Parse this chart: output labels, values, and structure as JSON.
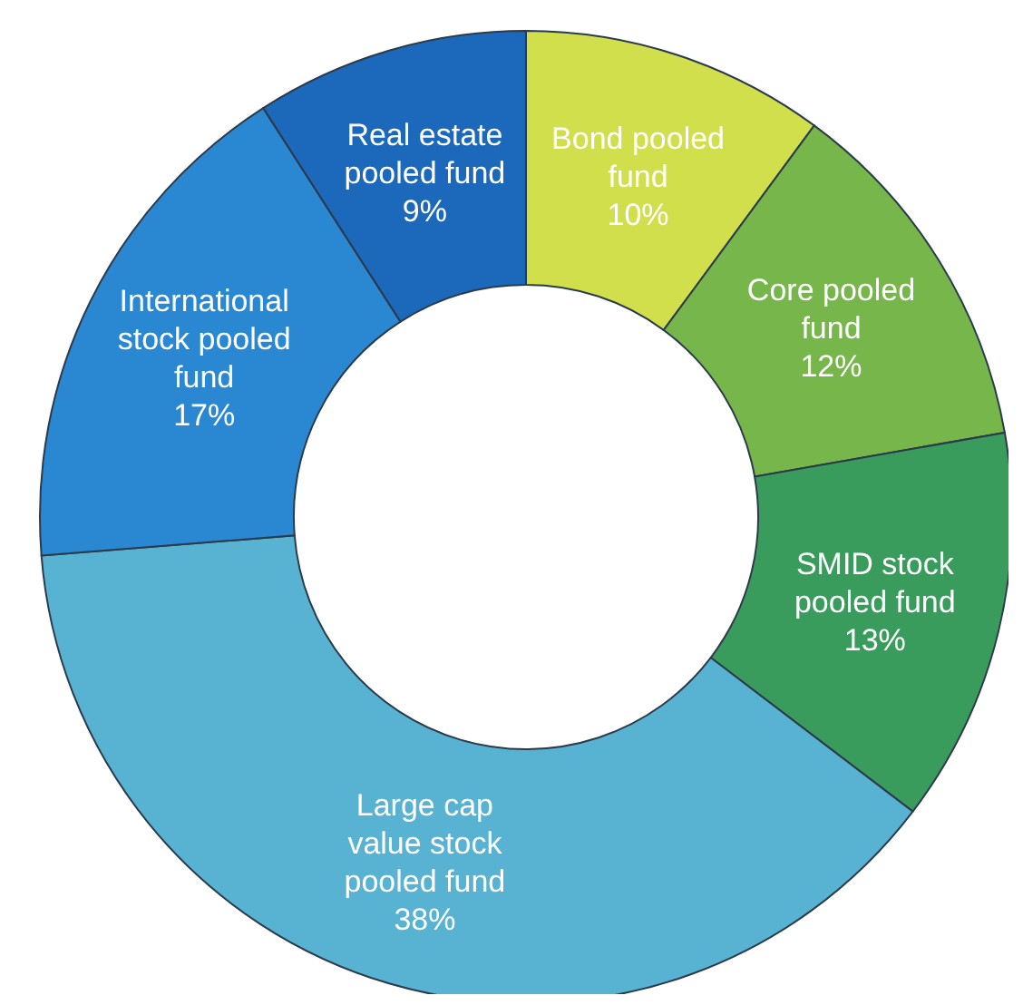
{
  "chart_data": {
    "type": "donut",
    "categories": [
      "Bond pooled fund",
      "Core pooled fund",
      "SMID stock pooled fund",
      "Large cap value stock pooled fund",
      "International stock pooled fund",
      "Real estate pooled fund"
    ],
    "values": [
      10,
      12,
      13,
      38,
      17,
      9
    ],
    "value_labels": [
      "10%",
      "12%",
      "13%",
      "38%",
      "17%",
      "9%"
    ],
    "colors": [
      "#d2df4c",
      "#76b64a",
      "#3a9c5c",
      "#58b2d2",
      "#2a88d2",
      "#1c68ba"
    ],
    "legend": false
  }
}
